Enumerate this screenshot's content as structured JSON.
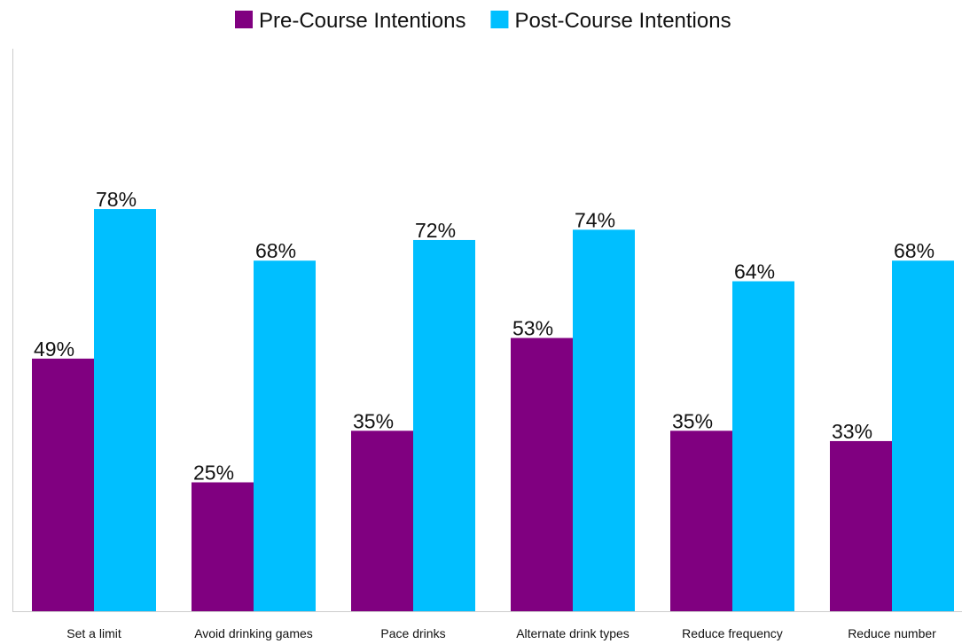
{
  "chart_data": {
    "type": "bar",
    "categories": [
      "Set a limit",
      "Avoid drinking games",
      "Pace drinks",
      "Alternate drink types",
      "Reduce frequency",
      "Reduce number"
    ],
    "series": [
      {
        "name": "Pre-Course Intentions",
        "color": "#800080",
        "values": [
          49,
          25,
          35,
          53,
          35,
          33
        ],
        "value_labels": [
          "49%",
          "25%",
          "35%",
          "53%",
          "35%",
          "33%"
        ]
      },
      {
        "name": "Post-Course Intentions",
        "color": "#00bfff",
        "values": [
          78,
          68,
          72,
          74,
          64,
          68
        ],
        "value_labels": [
          "78%",
          "68%",
          "72%",
          "74%",
          "64%",
          "68%"
        ]
      }
    ],
    "legend": "top"
  }
}
